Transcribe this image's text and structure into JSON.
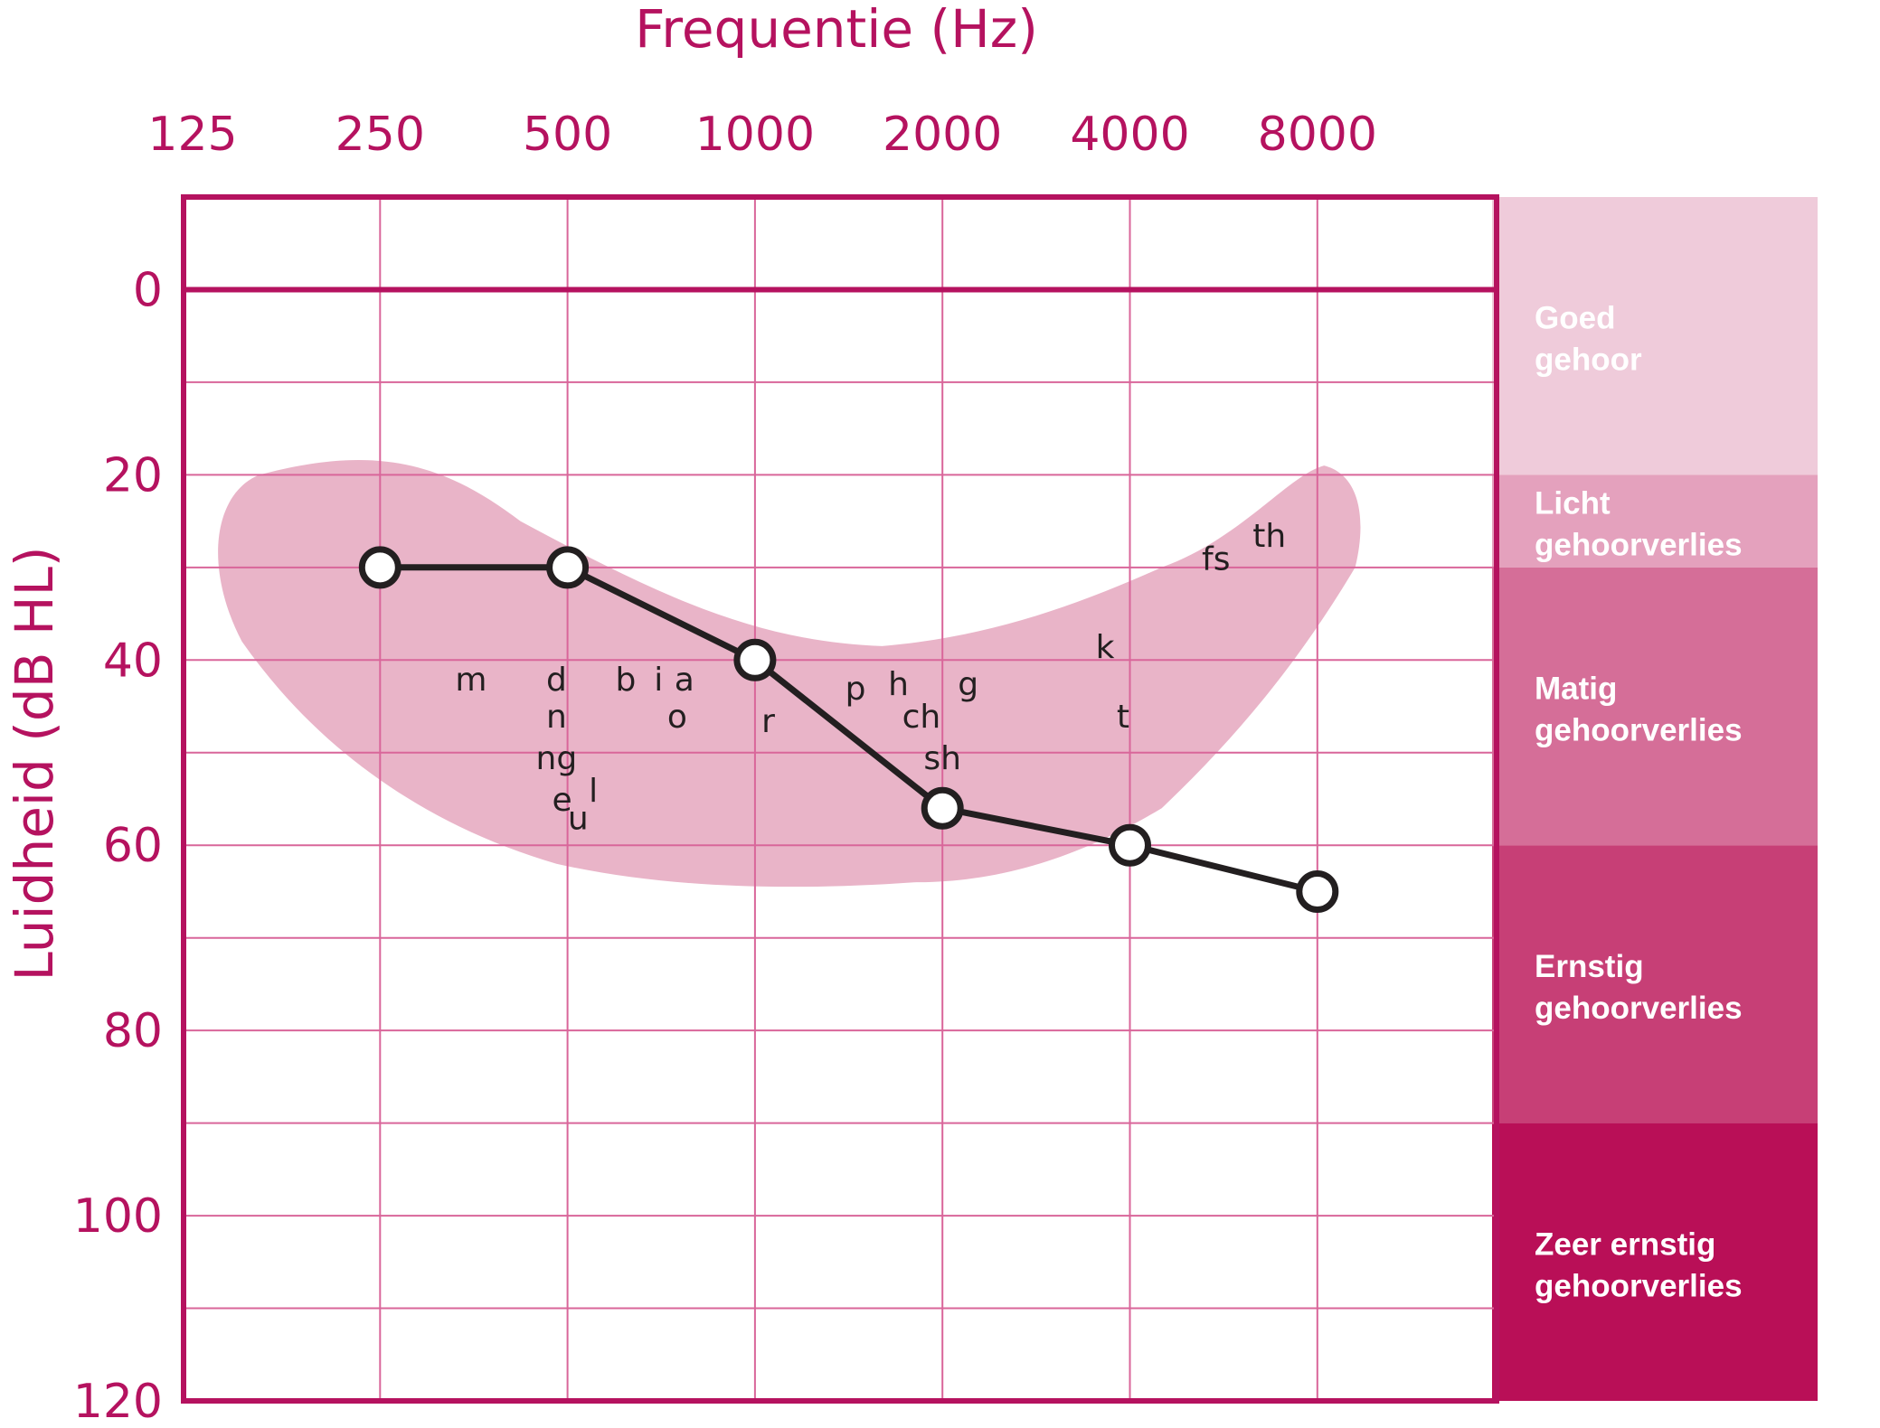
{
  "chart_data": {
    "type": "line",
    "title": "Frequentie (Hz)",
    "xlabel": "Frequentie (Hz)",
    "ylabel": "Luidheid (dB HL)",
    "x_scale": "log2",
    "x_ticks": [
      125,
      250,
      500,
      1000,
      2000,
      4000,
      8000
    ],
    "y_ticks": [
      0,
      20,
      40,
      60,
      80,
      100,
      120
    ],
    "ylim": [
      -10,
      120
    ],
    "y_inverted": true,
    "grid": true,
    "series": [
      {
        "x": [
          250,
          500,
          1000,
          2000,
          4000,
          8000
        ],
        "y": [
          30,
          30,
          40,
          56,
          60,
          65
        ],
        "marker": "open-circle",
        "color": "#231f20"
      }
    ],
    "speech_banana_color": "#e9b4c8",
    "speech_sounds": [
      {
        "label": "m",
        "x": 350,
        "y": 42
      },
      {
        "label": "d",
        "x": 480,
        "y": 42
      },
      {
        "label": "n",
        "x": 480,
        "y": 46
      },
      {
        "label": "ng",
        "x": 480,
        "y": 50.5
      },
      {
        "label": "e",
        "x": 490,
        "y": 55
      },
      {
        "label": "u",
        "x": 520,
        "y": 57
      },
      {
        "label": "l",
        "x": 550,
        "y": 54
      },
      {
        "label": "b",
        "x": 620,
        "y": 42
      },
      {
        "label": "i",
        "x": 700,
        "y": 42
      },
      {
        "label": "a",
        "x": 770,
        "y": 42
      },
      {
        "label": "o",
        "x": 750,
        "y": 46
      },
      {
        "label": "r",
        "x": 1050,
        "y": 46.5
      },
      {
        "label": "p",
        "x": 1450,
        "y": 43
      },
      {
        "label": "h",
        "x": 1700,
        "y": 42.5
      },
      {
        "label": "ch",
        "x": 1850,
        "y": 46
      },
      {
        "label": "sh",
        "x": 2000,
        "y": 50.5
      },
      {
        "label": "g",
        "x": 2200,
        "y": 42.5
      },
      {
        "label": "k",
        "x": 3650,
        "y": 38.5
      },
      {
        "label": "t",
        "x": 3900,
        "y": 46
      },
      {
        "label": "fs",
        "x": 5500,
        "y": 29
      },
      {
        "label": "th",
        "x": 6700,
        "y": 26.5
      }
    ],
    "categories_legend": [
      {
        "label": "Goed gehoor",
        "from": -10,
        "to": 20,
        "color": "#efcbda"
      },
      {
        "label": "Licht gehoorverlies",
        "from": 20,
        "to": 30,
        "color": "#e4a1bd"
      },
      {
        "label": "Matig gehoorverlies",
        "from": 30,
        "to": 60,
        "color": "#d56e98"
      },
      {
        "label": "Ernstig gehoorverlies",
        "from": 60,
        "to": 90,
        "color": "#c73f76"
      },
      {
        "label": "Zeer ernstig gehoorverlies",
        "from": 90,
        "to": 120,
        "color": "#b90f57"
      }
    ],
    "frame_color": "#b5125f",
    "grid_color": "#d9669a"
  }
}
